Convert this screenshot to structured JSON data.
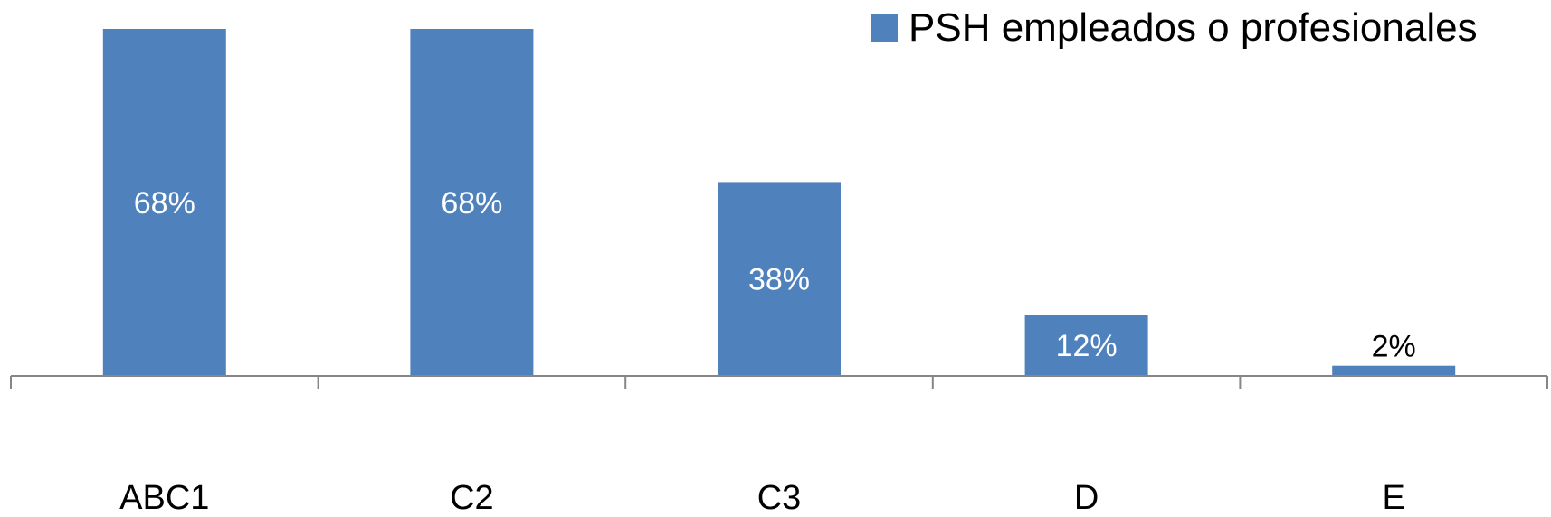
{
  "chart_data": {
    "type": "bar",
    "categories": [
      "ABC1",
      "C2",
      "C3",
      "D",
      "E"
    ],
    "series": [
      {
        "name": "PSH empleados o profesionales",
        "values": [
          68,
          68,
          38,
          12,
          2
        ]
      }
    ],
    "data_labels": [
      "68%",
      "68%",
      "38%",
      "12%",
      "2%"
    ],
    "unit": "%",
    "ylim": [
      0,
      70
    ],
    "grid": false,
    "legend_position": "top-right",
    "colors": {
      "bar": "#4f81bd",
      "axis": "#868686",
      "label_inside": "#ffffff",
      "label_outside": "#000000"
    }
  }
}
